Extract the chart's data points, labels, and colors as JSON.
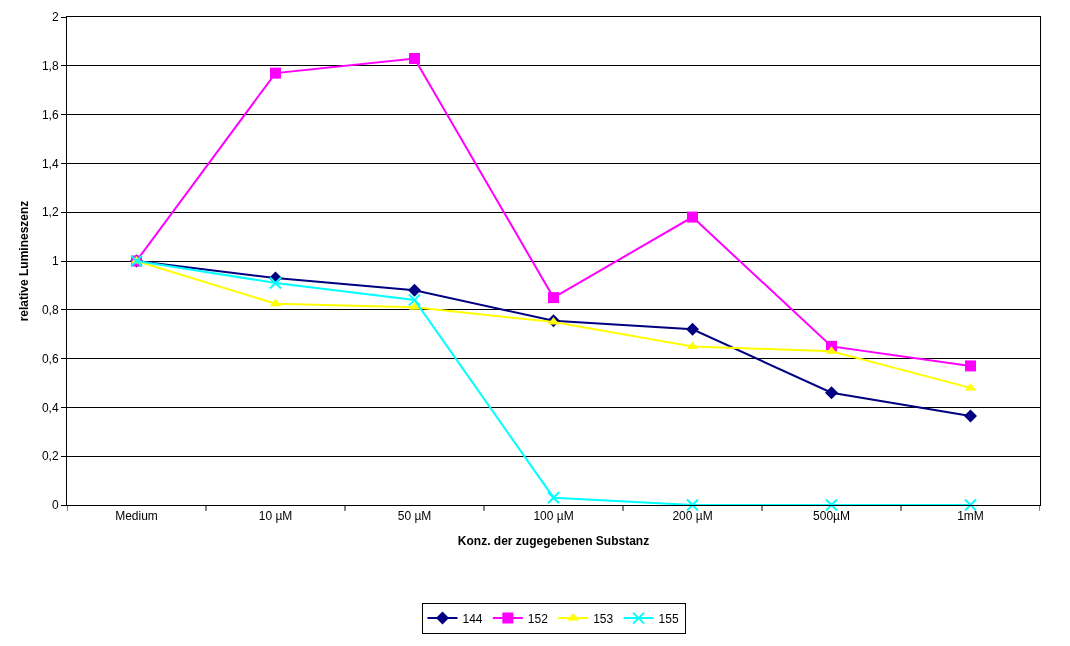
{
  "chart_data": {
    "type": "line",
    "xlabel": "Konz. der zugegebenen Substanz",
    "ylabel": "relative Lumineszenz",
    "categories": [
      "Medium",
      "10 µM",
      "50 µM",
      "100 µM",
      "200 µM",
      "500µM",
      "1mM"
    ],
    "series": [
      {
        "name": "144",
        "color": "#000080",
        "marker": "diamond",
        "values": [
          1,
          0.93,
          0.88,
          0.755,
          0.72,
          0.46,
          0.365
        ]
      },
      {
        "name": "152",
        "color": "#ff00ff",
        "marker": "square",
        "values": [
          1,
          1.77,
          1.83,
          0.85,
          1.18,
          0.65,
          0.57
        ]
      },
      {
        "name": "153",
        "color": "#ffff00",
        "marker": "triangle",
        "values": [
          1,
          0.825,
          0.81,
          0.75,
          0.65,
          0.63,
          0.48
        ]
      },
      {
        "name": "155",
        "color": "#00ffff",
        "marker": "cross",
        "values": [
          1,
          0.91,
          0.84,
          0.03,
          0,
          0,
          0
        ]
      }
    ],
    "ylim": [
      0,
      2
    ],
    "yticks": [
      0,
      {
        "value": 0.2,
        "label": "0,2"
      },
      {
        "value": 0.4,
        "label": "0,4"
      },
      {
        "value": 0.6,
        "label": "0,6"
      },
      {
        "value": 0.8,
        "label": "0,8"
      },
      1,
      {
        "value": 1.2,
        "label": "1,2"
      },
      {
        "value": 1.4,
        "label": "1,4"
      },
      {
        "value": 1.6,
        "label": "1,6"
      },
      {
        "value": 1.8,
        "label": "1,8"
      },
      2
    ],
    "grid": "y",
    "legend": "bottom",
    "line_style": "solid"
  }
}
